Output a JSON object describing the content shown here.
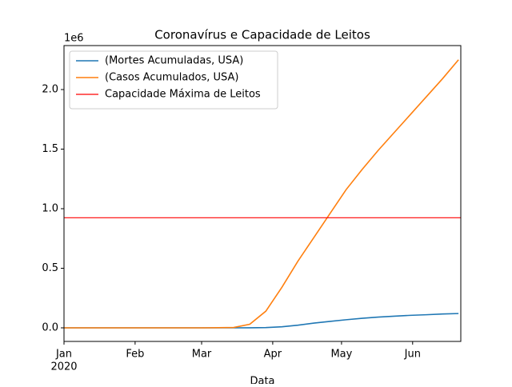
{
  "chart_data": {
    "type": "line",
    "title": "Coronavírus e Capacidade de Leitos",
    "xlabel": "Data",
    "y_offset_label": "1e6",
    "x_year_label": "2020",
    "x": [
      "2020-01-01",
      "2020-02-01",
      "2020-03-01",
      "2020-03-15",
      "2020-03-22",
      "2020-03-29",
      "2020-04-05",
      "2020-04-12",
      "2020-04-19",
      "2020-04-26",
      "2020-05-03",
      "2020-05-10",
      "2020-05-17",
      "2020-05-24",
      "2020-05-31",
      "2020-06-07",
      "2020-06-14",
      "2020-06-21"
    ],
    "series": [
      {
        "name": "(Mortes Acumuladas, USA)",
        "color": "#1f77b4",
        "values": [
          0,
          0,
          0,
          0.0001,
          0.0005,
          0.002,
          0.009,
          0.022,
          0.04,
          0.054,
          0.068,
          0.08,
          0.09,
          0.098,
          0.105,
          0.11,
          0.116,
          0.12
        ]
      },
      {
        "name": "(Casos Acumulados, USA)",
        "color": "#ff7f0e",
        "values": [
          0,
          0,
          0,
          0.003,
          0.03,
          0.14,
          0.34,
          0.56,
          0.76,
          0.96,
          1.16,
          1.33,
          1.49,
          1.64,
          1.79,
          1.94,
          2.09,
          2.25
        ]
      }
    ],
    "hline": {
      "name": "Capacidade Máxima de Leitos",
      "color": "#ff0000",
      "value": 0.924
    },
    "xlim": [
      "2020-01-01",
      "2020-06-22"
    ],
    "xticks": [
      {
        "value": "2020-01-01",
        "label": "Jan"
      },
      {
        "value": "2020-02-01",
        "label": "Feb"
      },
      {
        "value": "2020-03-01",
        "label": "Mar"
      },
      {
        "value": "2020-04-01",
        "label": "Apr"
      },
      {
        "value": "2020-05-01",
        "label": "May"
      },
      {
        "value": "2020-06-01",
        "label": "Jun"
      }
    ],
    "ylim": [
      -0.114,
      2.369
    ],
    "yticks": [
      {
        "value": 0,
        "label": "0.0"
      },
      0.5,
      {
        "value": 1,
        "label": "1.0"
      },
      1.5,
      {
        "value": 2,
        "label": "2.0"
      }
    ],
    "legend": "upper left"
  }
}
